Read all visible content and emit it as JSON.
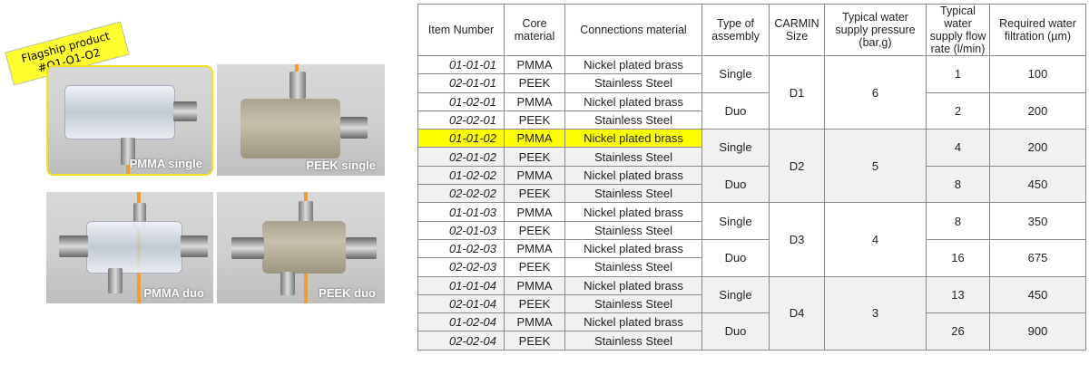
{
  "flag_label": {
    "line1": "Flagship product",
    "line2": "#O1-O1-O2"
  },
  "photos": [
    {
      "caption": "PMMA single",
      "material": "PMMA",
      "type": "single",
      "highlighted": true
    },
    {
      "caption": "PEEK single",
      "material": "PEEK",
      "type": "single",
      "highlighted": false
    },
    {
      "caption": "PMMA duo",
      "material": "PMMA",
      "type": "duo",
      "highlighted": false
    },
    {
      "caption": "PEEK duo",
      "material": "PEEK",
      "type": "duo",
      "highlighted": false
    }
  ],
  "colors": {
    "highlight": "#ffff00",
    "grey_group": "#f1f1f1",
    "border": "#8a8a8a"
  },
  "table": {
    "headers": [
      "Item Number",
      "Core material",
      "Connections material",
      "Type of assembly",
      "CARMIN Size",
      "Typical water supply pressure (bar,g)",
      "Typical water supply flow rate (l/min)",
      "Required water filtration (µm)"
    ],
    "groups": [
      {
        "size": "D1",
        "pressure": "6",
        "shaded": false,
        "assemblies": [
          {
            "type": "Single",
            "flow": "1",
            "filtration": "100",
            "items": [
              [
                "01-01-01",
                "PMMA",
                "Nickel plated brass"
              ],
              [
                "02-01-01",
                "PEEK",
                "Stainless Steel"
              ]
            ]
          },
          {
            "type": "Duo",
            "flow": "2",
            "filtration": "200",
            "items": [
              [
                "01-02-01",
                "PMMA",
                "Nickel plated brass"
              ],
              [
                "02-02-01",
                "PEEK",
                "Stainless Steel"
              ]
            ]
          }
        ]
      },
      {
        "size": "D2",
        "pressure": "5",
        "shaded": true,
        "assemblies": [
          {
            "type": "Single",
            "flow": "4",
            "filtration": "200",
            "items": [
              [
                "01-01-02",
                "PMMA",
                "Nickel plated brass"
              ],
              [
                "02-01-02",
                "PEEK",
                "Stainless Steel"
              ]
            ]
          },
          {
            "type": "Duo",
            "flow": "8",
            "filtration": "450",
            "items": [
              [
                "01-02-02",
                "PMMA",
                "Nickel plated brass"
              ],
              [
                "02-02-02",
                "PEEK",
                "Stainless Steel"
              ]
            ]
          }
        ]
      },
      {
        "size": "D3",
        "pressure": "4",
        "shaded": false,
        "assemblies": [
          {
            "type": "Single",
            "flow": "8",
            "filtration": "350",
            "items": [
              [
                "01-01-03",
                "PMMA",
                "Nickel plated brass"
              ],
              [
                "02-01-03",
                "PEEK",
                "Stainless Steel"
              ]
            ]
          },
          {
            "type": "Duo",
            "flow": "16",
            "filtration": "675",
            "items": [
              [
                "01-02-03",
                "PMMA",
                "Nickel plated brass"
              ],
              [
                "02-02-03",
                "PEEK",
                "Stainless Steel"
              ]
            ]
          }
        ]
      },
      {
        "size": "D4",
        "pressure": "3",
        "shaded": true,
        "assemblies": [
          {
            "type": "Single",
            "flow": "13",
            "filtration": "450",
            "items": [
              [
                "01-01-04",
                "PMMA",
                "Nickel plated brass"
              ],
              [
                "02-01-04",
                "PEEK",
                "Stainless Steel"
              ]
            ]
          },
          {
            "type": "Duo",
            "flow": "26",
            "filtration": "900",
            "items": [
              [
                "01-02-04",
                "PMMA",
                "Nickel plated brass"
              ],
              [
                "02-02-04",
                "PEEK",
                "Stainless Steel"
              ]
            ]
          }
        ]
      }
    ],
    "highlighted_item": "01-01-02"
  }
}
